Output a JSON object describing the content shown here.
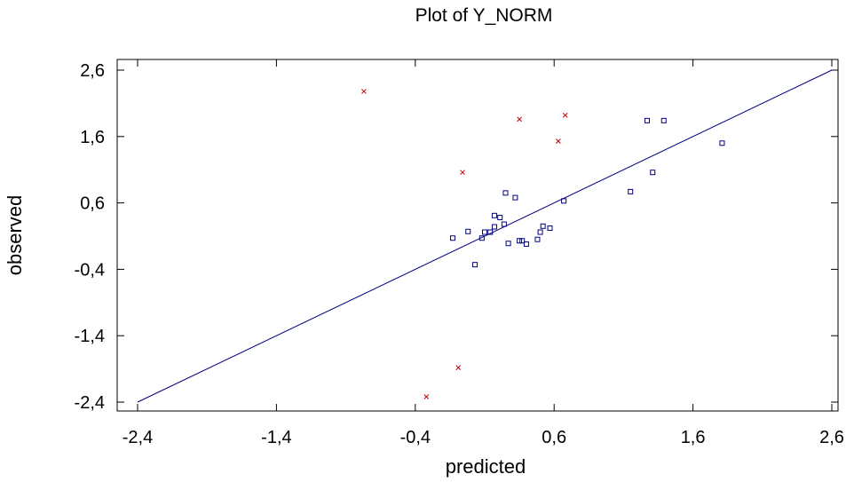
{
  "chart_data": {
    "type": "scatter",
    "title": "Plot of Y_NORM",
    "xlabel": "predicted",
    "ylabel": "observed",
    "xlim": [
      -2.4,
      2.6
    ],
    "ylim": [
      -2.4,
      2.6
    ],
    "xticks": [
      "-2,4",
      "-1,4",
      "-0,4",
      "0,6",
      "1,6",
      "2,6"
    ],
    "yticks": [
      "2,6",
      "1,6",
      "0,6",
      "-0,4",
      "-1,4",
      "-2,4"
    ],
    "xtick_values": [
      -2.4,
      -1.4,
      -0.4,
      0.6,
      1.6,
      2.6
    ],
    "ytick_values": [
      2.6,
      1.6,
      0.6,
      -0.4,
      -1.4,
      -2.4
    ],
    "grid": false,
    "reference_line": {
      "from": [
        -2.4,
        -2.4
      ],
      "to": [
        2.6,
        2.6
      ],
      "color": "#000080"
    },
    "series": [
      {
        "marker": "square",
        "color": "#000080",
        "points": [
          [
            -0.13,
            0.07
          ],
          [
            0.1,
            0.16
          ],
          [
            0.17,
            0.41
          ],
          [
            0.25,
            0.75
          ],
          [
            0.32,
            0.68
          ],
          [
            0.24,
            0.28
          ],
          [
            0.21,
            0.38
          ],
          [
            0.17,
            0.24
          ],
          [
            0.14,
            0.16
          ],
          [
            0.08,
            0.07
          ],
          [
            0.27,
            -0.01
          ],
          [
            0.4,
            -0.02
          ],
          [
            0.48,
            0.05
          ],
          [
            0.5,
            0.16
          ],
          [
            0.52,
            0.25
          ],
          [
            0.57,
            0.22
          ],
          [
            0.37,
            0.03
          ],
          [
            0.35,
            0.03
          ],
          [
            0.03,
            -0.33
          ],
          [
            -0.02,
            0.17
          ],
          [
            0.67,
            0.63
          ],
          [
            1.15,
            0.77
          ],
          [
            1.27,
            1.84
          ],
          [
            1.31,
            1.06
          ],
          [
            1.39,
            1.84
          ],
          [
            1.81,
            1.5
          ]
        ]
      },
      {
        "marker": "x",
        "color": "#c00000",
        "points": [
          [
            -0.77,
            2.28
          ],
          [
            -0.06,
            1.06
          ],
          [
            0.35,
            1.86
          ],
          [
            0.63,
            1.53
          ],
          [
            0.68,
            1.92
          ],
          [
            -0.09,
            -1.88
          ],
          [
            -0.32,
            -2.32
          ]
        ]
      }
    ]
  }
}
